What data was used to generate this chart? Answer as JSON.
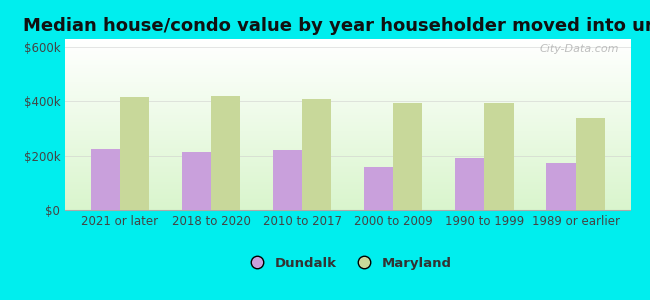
{
  "title": "Median house/condo value by year householder moved into unit",
  "categories": [
    "2021 or later",
    "2018 to 2020",
    "2010 to 2017",
    "2000 to 2009",
    "1990 to 1999",
    "1989 or earlier"
  ],
  "dundalk_values": [
    225000,
    215000,
    220000,
    160000,
    190000,
    175000
  ],
  "maryland_values": [
    415000,
    420000,
    410000,
    395000,
    395000,
    340000
  ],
  "dundalk_color": "#c9a0dc",
  "maryland_color": "#c8d89a",
  "background_color": "#00eeee",
  "yticks": [
    0,
    200000,
    400000,
    600000
  ],
  "ylim": [
    0,
    630000
  ],
  "watermark": "City-Data.com",
  "legend_labels": [
    "Dundalk",
    "Maryland"
  ],
  "title_fontsize": 13,
  "tick_fontsize": 8.5,
  "legend_fontsize": 9.5
}
